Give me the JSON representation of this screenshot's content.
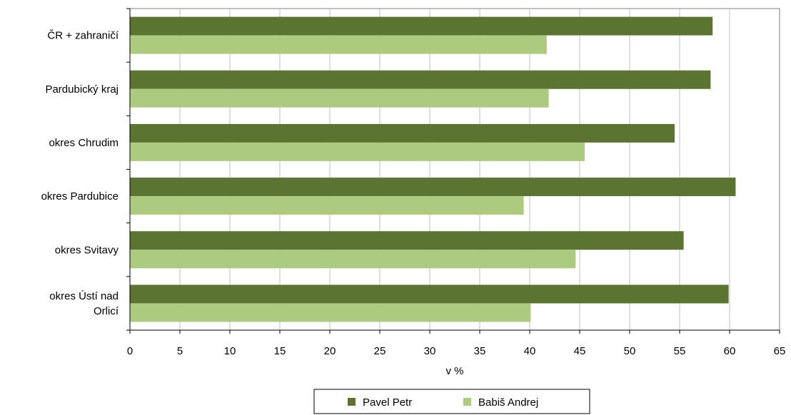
{
  "chart_data": {
    "type": "bar",
    "orientation": "horizontal",
    "categories": [
      [
        "ČR + zahraničí"
      ],
      [
        "Pardubický kraj"
      ],
      [
        "okres Chrudim"
      ],
      [
        "okres Pardubice"
      ],
      [
        "okres Svitavy"
      ],
      [
        "okres Ústí nad",
        "Orlicí"
      ]
    ],
    "series": [
      {
        "name": "Pavel Petr",
        "color": "#5b7431",
        "values": [
          58.3,
          58.1,
          54.5,
          60.6,
          55.4,
          59.9
        ]
      },
      {
        "name": "Babiš Andrej",
        "color": "#adcb7e",
        "values": [
          41.7,
          41.9,
          45.5,
          39.4,
          44.6,
          40.1
        ]
      }
    ],
    "xlabel": "v %",
    "xlim": [
      0,
      65
    ],
    "xticks": [
      "0",
      "5",
      "10",
      "15",
      "20",
      "25",
      "30",
      "35",
      "40",
      "45",
      "50",
      "55",
      "60",
      "65"
    ],
    "grid": "vertical",
    "legend": "bottom"
  }
}
